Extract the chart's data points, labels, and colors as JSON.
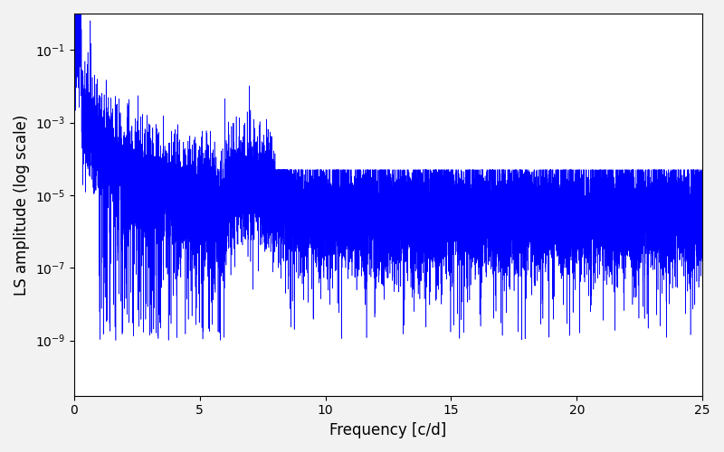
{
  "title": "",
  "xlabel": "Frequency [c/d]",
  "ylabel": "LS amplitude (log scale)",
  "xlim": [
    0,
    25
  ],
  "ylim_min": 3e-11,
  "ylim_max": 1.0,
  "yticks": [
    1e-09,
    1e-07,
    1e-05,
    0.001,
    0.1
  ],
  "xticks": [
    0,
    5,
    10,
    15,
    20,
    25
  ],
  "line_color": "#0000ff",
  "line_width": 0.4,
  "bg_color": "#ffffff",
  "fig_bg_color": "#f2f2f2",
  "dpi": 100,
  "figsize": [
    8.0,
    5.0
  ],
  "seed": 12345,
  "n_points": 15000,
  "freq_max": 25.0
}
